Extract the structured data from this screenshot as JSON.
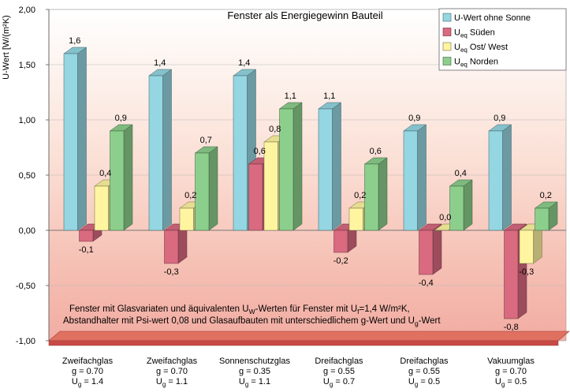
{
  "chart_data": {
    "type": "bar",
    "title": "Fenster als Energiegewinn Bauteil",
    "ylabel": "U-Wert [W/(m²K)",
    "ylim": [
      -1.0,
      2.0
    ],
    "yticks": [
      "2,00",
      "1,50",
      "1,00",
      "0,50",
      "0,00",
      "-0,50",
      "-1,00"
    ],
    "grid": true,
    "legend_position": "top-right",
    "categories": [
      {
        "name": "Zweifachglas",
        "g": "g = 0.70",
        "ug": "U",
        "ug_sub": "g",
        "ug_val": " = 1.4"
      },
      {
        "name": "Zweifachglas",
        "g": "g = 0.70",
        "ug": "U",
        "ug_sub": "g",
        "ug_val": " = 1.1"
      },
      {
        "name": "Sonnenschutzglas",
        "g": "g = 0.35",
        "ug": "U",
        "ug_sub": "g",
        "ug_val": " = 1.1"
      },
      {
        "name": "Dreifachglas",
        "g": "g = 0.55",
        "ug": "U",
        "ug_sub": "g",
        "ug_val": " = 0.7"
      },
      {
        "name": "Dreifachglas",
        "g": "g = 0.55",
        "ug": "U",
        "ug_sub": "g",
        "ug_val": " = 0.5"
      },
      {
        "name": "Vakuumglas",
        "g": "g = 0.70",
        "ug": "U",
        "ug_sub": "g",
        "ug_val": " = 0.5"
      }
    ],
    "series": [
      {
        "name": "U-Wert ohne Sonne",
        "name_main": "U-Wert ohne Sonne",
        "name_sub": "",
        "name_rest": "",
        "color": "#94d6e2",
        "values": [
          1.6,
          1.4,
          1.4,
          1.1,
          0.9,
          0.9
        ],
        "labels": [
          "1,6",
          "1,4",
          "1,4",
          "1,1",
          "0,9",
          "0,9"
        ]
      },
      {
        "name": "Ueq Süden",
        "name_main": "U",
        "name_sub": "eq",
        "name_rest": " Süden",
        "color": "#d96a80",
        "values": [
          -0.1,
          -0.3,
          0.6,
          -0.2,
          -0.4,
          -0.8
        ],
        "labels": [
          "-0,1",
          "-0,3",
          "0,6",
          "-0,2",
          "-0,4",
          "-0,8"
        ]
      },
      {
        "name": "Ueq Ost/ West",
        "name_main": "U",
        "name_sub": "eq",
        "name_rest": " Ost/ West",
        "color": "#fff5a0",
        "values": [
          0.4,
          0.2,
          0.8,
          0.2,
          0.0,
          -0.3
        ],
        "labels": [
          "0,4",
          "0,2",
          "0,8",
          "0,2",
          "0,0",
          "-0,3"
        ]
      },
      {
        "name": "Ueq Norden",
        "name_main": "U",
        "name_sub": "eq",
        "name_rest": " Norden",
        "color": "#8ccf8c",
        "values": [
          0.9,
          0.7,
          1.1,
          0.6,
          0.4,
          0.2
        ],
        "labels": [
          "0,9",
          "0,7",
          "1,1",
          "0,6",
          "0,4",
          "0,2"
        ]
      }
    ],
    "annotation": {
      "line1_a": "Fenster mit Glasvariaten und äquivalenten U",
      "line1_sub1": "W",
      "line1_b": "-Werten für Fenster mit U",
      "line1_sub2": "f",
      "line1_c": "=1,4 W/m²K,",
      "line2_a": "Abstandhalter mit Psi-wert 0,08 und Glasaufbauten mit unterschiedlichem g-Wert und U",
      "line2_sub": "g",
      "line2_b": "-Wert"
    }
  }
}
